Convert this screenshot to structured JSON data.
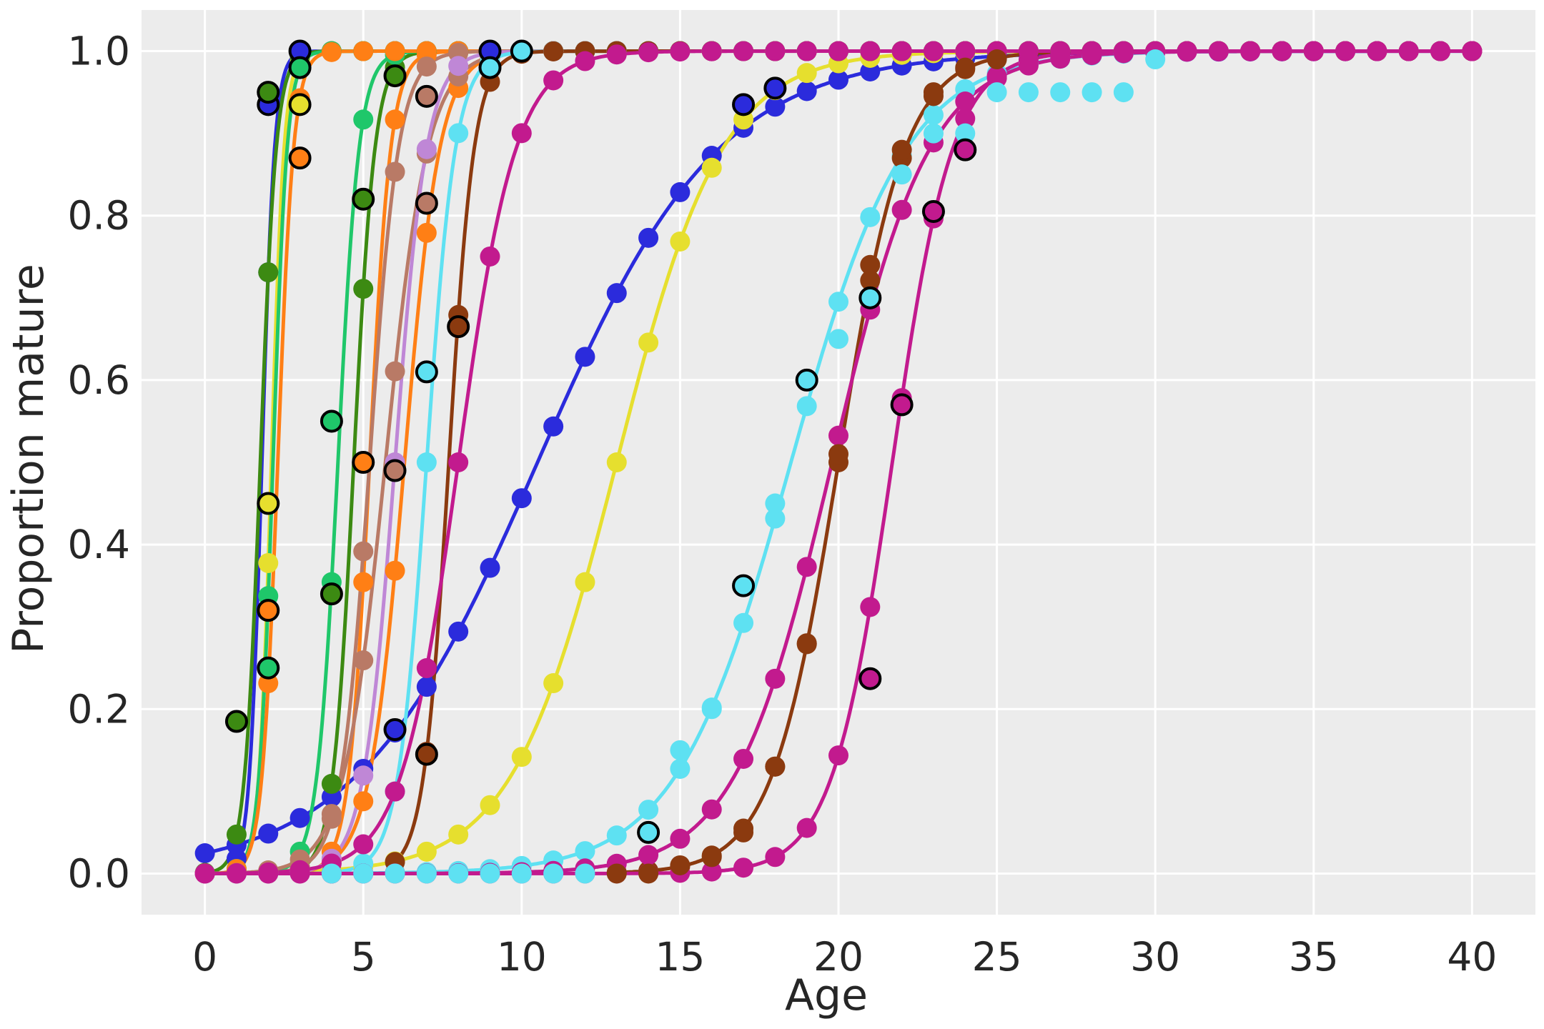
{
  "chart_data": {
    "type": "line",
    "title": "",
    "xlabel": "Age",
    "ylabel": "Proportion mature",
    "xlim": [
      -2,
      42
    ],
    "ylim": [
      -0.05,
      1.05
    ],
    "xticks": [
      0,
      5,
      10,
      15,
      20,
      25,
      30,
      35,
      40
    ],
    "yticks": [
      0.0,
      0.2,
      0.4,
      0.6,
      0.8,
      1.0
    ],
    "xtick_labels": [
      "0",
      "5",
      "10",
      "15",
      "20",
      "25",
      "30",
      "35",
      "40"
    ],
    "ytick_labels": [
      "0.0",
      "0.2",
      "0.4",
      "0.6",
      "0.8",
      "1.0"
    ],
    "grid": true,
    "background": "#ececec",
    "legend": "none",
    "notes": "Each series: a fitted logistic maturity curve (line) plus marker points at integer ages; markers with black edges are observed proportions, plain markers are fitted values.",
    "series": [
      {
        "color": "#2b2bdc",
        "curve": {
          "a50": 10.5,
          "slope": 0.35,
          "x_min": 0,
          "x_max": 40
        },
        "observed": [
          [
            2,
            0.935
          ],
          [
            3,
            1.0
          ],
          [
            6,
            0.175
          ],
          [
            9,
            1.0
          ],
          [
            17,
            0.935
          ],
          [
            18,
            0.955
          ]
        ]
      },
      {
        "color": "#2b2bdc",
        "curve": {
          "a50": 1.8,
          "slope": 5.0,
          "x_min": 1,
          "x_max": 40
        },
        "observed": []
      },
      {
        "color": "#e6df2e",
        "curve": {
          "a50": 13.0,
          "slope": 0.6,
          "x_min": 0,
          "x_max": 40
        },
        "observed": [
          [
            2,
            0.45
          ],
          [
            3,
            0.935
          ]
        ]
      },
      {
        "color": "#e6df2e",
        "curve": {
          "a50": 2.1,
          "slope": 5.0,
          "x_min": 1,
          "x_max": 40
        },
        "observed": []
      },
      {
        "color": "#3c8a12",
        "curve": {
          "a50": 1.75,
          "slope": 4.0,
          "x_min": 0,
          "x_max": 40
        },
        "observed": [
          [
            1,
            0.185
          ],
          [
            2,
            0.95
          ],
          [
            4,
            0.34
          ],
          [
            5,
            0.82
          ],
          [
            6,
            0.97
          ]
        ]
      },
      {
        "color": "#3c8a12",
        "curve": {
          "a50": 4.7,
          "slope": 3.0,
          "x_min": 3,
          "x_max": 40
        },
        "observed": []
      },
      {
        "color": "#1fc76a",
        "curve": {
          "a50": 2.15,
          "slope": 4.5,
          "x_min": 1,
          "x_max": 40
        },
        "observed": [
          [
            2,
            0.25
          ],
          [
            3,
            0.98
          ],
          [
            4,
            0.55
          ]
        ]
      },
      {
        "color": "#1fc76a",
        "curve": {
          "a50": 4.2,
          "slope": 3.0,
          "x_min": 2,
          "x_max": 40
        },
        "observed": []
      },
      {
        "color": "#ff7f15",
        "curve": {
          "a50": 2.3,
          "slope": 4.0,
          "x_min": 0,
          "x_max": 40
        },
        "observed": [
          [
            2,
            0.32
          ],
          [
            3,
            0.87
          ],
          [
            5,
            0.5
          ]
        ]
      },
      {
        "color": "#ff7f15",
        "curve": {
          "a50": 6.3,
          "slope": 1.8,
          "x_min": 3,
          "x_max": 40
        },
        "observed": []
      },
      {
        "color": "#ff7f15",
        "curve": {
          "a50": 5.2,
          "slope": 3.0,
          "x_min": 3,
          "x_max": 40
        },
        "observed": []
      },
      {
        "color": "#b97a66",
        "curve": {
          "a50": 5.7,
          "slope": 1.5,
          "x_min": 0,
          "x_max": 40
        },
        "observed": [
          [
            6,
            0.49
          ],
          [
            7,
            0.815
          ],
          [
            7,
            0.945
          ]
        ]
      },
      {
        "color": "#b97a66",
        "curve": {
          "a50": 5.2,
          "slope": 2.2,
          "x_min": 2,
          "x_max": 40
        },
        "observed": []
      },
      {
        "color": "#bf87d6",
        "curve": {
          "a50": 6.0,
          "slope": 2.0,
          "x_min": 2,
          "x_max": 40
        },
        "observed": []
      },
      {
        "color": "#5ee1f2",
        "curve": {
          "a50": 7.0,
          "slope": 2.2,
          "x_min": 4,
          "x_max": 40
        },
        "observed": [
          [
            7,
            0.61
          ],
          [
            9,
            0.98
          ],
          [
            10,
            1.0
          ]
        ],
        "points": [
          [
            4,
            0.0
          ],
          [
            5,
            0.0
          ],
          [
            6,
            0.0
          ],
          [
            7,
            0.0
          ],
          [
            8,
            0.0
          ],
          [
            9,
            0.0
          ],
          [
            10,
            0.0
          ],
          [
            11,
            0.0
          ],
          [
            12,
            0.0
          ]
        ]
      },
      {
        "color": "#5ee1f2",
        "curve": {
          "a50": 18.5,
          "slope": 0.55,
          "x_min": 0,
          "x_max": 30
        },
        "observed": [
          [
            14,
            0.05
          ],
          [
            17,
            0.35
          ],
          [
            19,
            0.6
          ],
          [
            21,
            0.7
          ]
        ],
        "points": [
          [
            15,
            0.15
          ],
          [
            16,
            0.2
          ],
          [
            18,
            0.45
          ],
          [
            20,
            0.65
          ],
          [
            22,
            0.85
          ],
          [
            23,
            0.9
          ],
          [
            24,
            0.9
          ],
          [
            25,
            0.95
          ],
          [
            26,
            0.95
          ],
          [
            27,
            0.95
          ],
          [
            28,
            0.95
          ],
          [
            29,
            0.95
          ],
          [
            30,
            0.99
          ]
        ]
      },
      {
        "color": "#8b3a0f",
        "curve": {
          "a50": 7.7,
          "slope": 2.5,
          "x_min": 6,
          "x_max": 40
        },
        "observed": [
          [
            7,
            0.145
          ],
          [
            8,
            0.665
          ]
        ]
      },
      {
        "color": "#8b3a0f",
        "curve": {
          "a50": 20.0,
          "slope": 0.95,
          "x_min": 13,
          "x_max": 40
        },
        "observed": [],
        "points": [
          [
            13,
            0.0
          ],
          [
            14,
            0.0
          ],
          [
            15,
            0.01
          ],
          [
            16,
            0.02
          ],
          [
            17,
            0.05
          ],
          [
            18,
            0.13
          ],
          [
            19,
            0.28
          ],
          [
            20,
            0.51
          ],
          [
            21,
            0.74
          ],
          [
            22,
            0.88
          ],
          [
            23,
            0.95
          ],
          [
            24,
            0.98
          ],
          [
            25,
            0.99
          ]
        ]
      },
      {
        "color": "#c21a8e",
        "curve": {
          "a50": 8.0,
          "slope": 1.1,
          "x_min": 0,
          "x_max": 40
        },
        "observed": []
      },
      {
        "color": "#c21a8e",
        "curve": {
          "a50": 19.8,
          "slope": 0.65,
          "x_min": 0,
          "x_max": 40
        },
        "observed": [
          [
            21,
            0.237
          ],
          [
            23,
            0.805
          ]
        ]
      },
      {
        "color": "#c21a8e",
        "curve": {
          "a50": 21.7,
          "slope": 1.05,
          "x_min": 0,
          "x_max": 40
        },
        "observed": [
          [
            22,
            0.57
          ],
          [
            24,
            0.88
          ]
        ]
      }
    ]
  }
}
